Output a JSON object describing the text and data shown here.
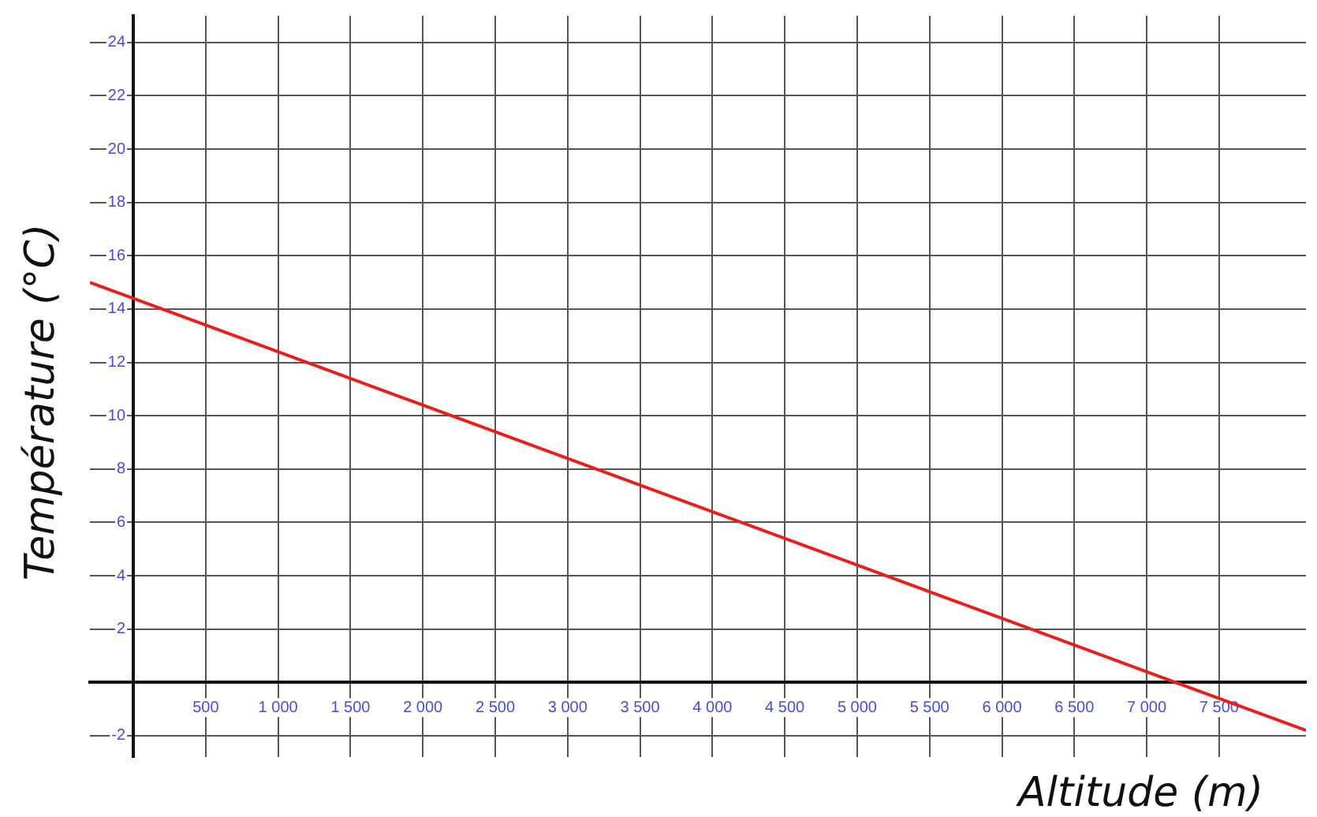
{
  "chart_data": {
    "type": "line",
    "xlabel": "Altitude (m)",
    "ylabel": "Température (°C)",
    "x": [
      -300,
      8100
    ],
    "series": [
      {
        "color": "#e8201c",
        "values": [
          15.0,
          -1.8
        ]
      }
    ],
    "xlim": [
      -300,
      8100
    ],
    "xticks": [
      {
        "value": 500,
        "label": "500"
      },
      {
        "value": 1000,
        "label": "1 000"
      },
      {
        "value": 1500,
        "label": "1 500"
      },
      {
        "value": 2000,
        "label": "2 000"
      },
      {
        "value": 2500,
        "label": "2 500"
      },
      {
        "value": 3000,
        "label": "3 000"
      },
      {
        "value": 3500,
        "label": "3 500"
      },
      {
        "value": 4000,
        "label": "4 000"
      },
      {
        "value": 4500,
        "label": "4 500"
      },
      {
        "value": 5000,
        "label": "5 000"
      },
      {
        "value": 5500,
        "label": "5 500"
      },
      {
        "value": 6000,
        "label": "6 000"
      },
      {
        "value": 6500,
        "label": "6 500"
      },
      {
        "value": 7000,
        "label": "7 000"
      },
      {
        "value": 7500,
        "label": "7 500"
      }
    ],
    "ylim": [
      -2.8,
      25
    ],
    "yticks": [
      -2,
      {
        "value": 0,
        "label": null
      },
      2,
      4,
      6,
      8,
      10,
      12,
      14,
      16,
      18,
      20,
      22,
      24
    ],
    "grid": true,
    "marker": "none",
    "line_style": "solid"
  }
}
